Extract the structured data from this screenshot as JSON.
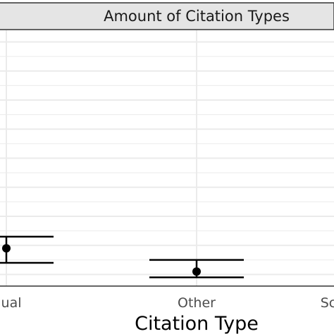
{
  "chart_data": {
    "type": "scatter",
    "facet_title": "Amount of Citation Types",
    "xlabel": "Citation Type",
    "ylabel": "",
    "categories": [
      "Manual",
      "Other",
      "Software"
    ],
    "visible_tick_labels": [
      "nual",
      "Other",
      "Sc"
    ],
    "ylim": [
      0,
      8
    ],
    "grid": true,
    "series": [
      {
        "points": [
          {
            "category": "Manual",
            "mean": 0.9,
            "lower": 0.4,
            "upper": 1.3
          },
          {
            "category": "Other",
            "mean": 0.1,
            "lower": -0.1,
            "upper": 0.5
          }
        ]
      }
    ],
    "colors": {
      "strip_bg": "#e5e5e5",
      "strip_border": "#333333",
      "grid": "#ebebeb",
      "point": "#000000",
      "axis": "#333333"
    }
  }
}
